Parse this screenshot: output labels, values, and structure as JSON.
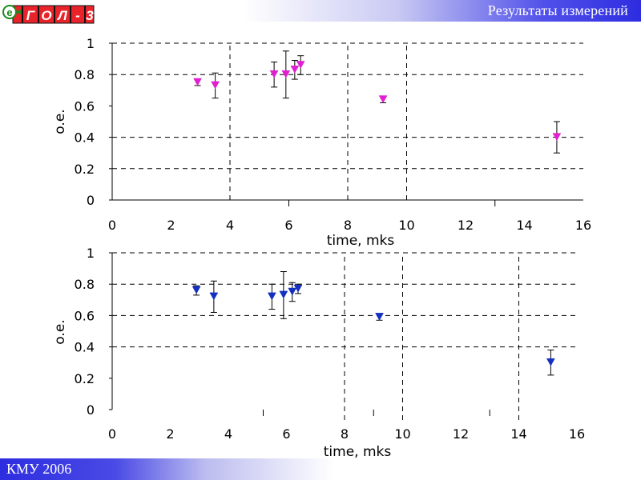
{
  "header": {
    "title": "Результаты измерений"
  },
  "logo": {
    "letters": [
      "e",
      "Г",
      "О",
      "Л",
      "-",
      "3"
    ],
    "text": "ГОЛ-3"
  },
  "footer": {
    "text": "КМУ 2006"
  },
  "colors": {
    "series_top": "#e020d0",
    "series_bottom": "#1530c0"
  },
  "chart_data": [
    {
      "type": "scatter",
      "xlabel": "time, mks",
      "ylabel": "o.e.",
      "xlim": [
        0,
        16
      ],
      "ylim": [
        0,
        1
      ],
      "x_ticks": [
        "0",
        "2",
        "4",
        "6",
        "8",
        "10",
        "12",
        "14",
        "16"
      ],
      "y_ticks": [
        "0",
        "0.2",
        "0.4",
        "0.6",
        "0.8",
        "1"
      ],
      "grid": "dashed, partial",
      "marker": "down-triangle",
      "series": [
        {
          "color": "#e020d0",
          "points": [
            {
              "x": 2.9,
              "y": 0.75,
              "err": 0.02
            },
            {
              "x": 3.5,
              "y": 0.73,
              "err": 0.08
            },
            {
              "x": 5.5,
              "y": 0.8,
              "err": 0.08
            },
            {
              "x": 5.9,
              "y": 0.8,
              "err": 0.15
            },
            {
              "x": 6.2,
              "y": 0.83,
              "err": 0.06
            },
            {
              "x": 6.4,
              "y": 0.86,
              "err": 0.06
            },
            {
              "x": 9.2,
              "y": 0.64,
              "err": 0.02
            },
            {
              "x": 15.1,
              "y": 0.4,
              "err": 0.1
            }
          ]
        }
      ]
    },
    {
      "type": "scatter",
      "xlabel": "time, mks",
      "ylabel": "o.e.",
      "xlim": [
        0,
        16
      ],
      "ylim": [
        0,
        1
      ],
      "x_ticks": [
        "0",
        "2",
        "4",
        "6",
        "8",
        "10",
        "12",
        "14",
        "16"
      ],
      "y_ticks": [
        "0",
        "0.2",
        "0.4",
        "0.6",
        "0.8",
        "1"
      ],
      "grid": "dashed, partial",
      "marker": "down-triangle",
      "series": [
        {
          "color": "#1530c0",
          "points": [
            {
              "x": 2.9,
              "y": 0.76,
              "err": 0.03
            },
            {
              "x": 3.5,
              "y": 0.72,
              "err": 0.1
            },
            {
              "x": 5.5,
              "y": 0.72,
              "err": 0.08
            },
            {
              "x": 5.9,
              "y": 0.73,
              "err": 0.15
            },
            {
              "x": 6.2,
              "y": 0.75,
              "err": 0.06
            },
            {
              "x": 6.4,
              "y": 0.77,
              "err": 0.03
            },
            {
              "x": 9.2,
              "y": 0.59,
              "err": 0.02
            },
            {
              "x": 15.1,
              "y": 0.3,
              "err": 0.08
            }
          ]
        }
      ]
    }
  ]
}
